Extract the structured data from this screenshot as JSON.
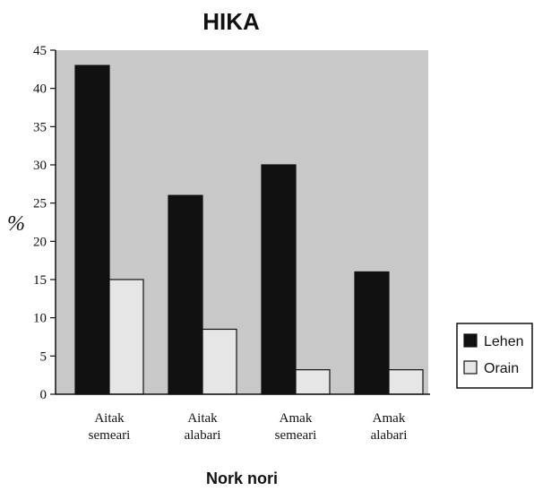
{
  "chart_data": {
    "type": "bar",
    "title": "HIKA",
    "xlabel": "Nork nori",
    "ylabel": "%",
    "categories": [
      [
        "Aitak",
        "semeari"
      ],
      [
        "Aitak",
        "alabari"
      ],
      [
        "Amak",
        "semeari"
      ],
      [
        "Amak",
        "alabari"
      ]
    ],
    "series": [
      {
        "name": "Lehen",
        "values": [
          43,
          26,
          30,
          16
        ],
        "color": "#111111"
      },
      {
        "name": "Orain",
        "values": [
          15,
          8.5,
          3.2,
          3.2
        ],
        "color": "#e6e6e6"
      }
    ],
    "ylim": [
      0,
      45
    ],
    "yticks": [
      0,
      5,
      10,
      15,
      20,
      25,
      30,
      35,
      40,
      45
    ],
    "grid": false,
    "legend_position": "bottom-right",
    "plot_background": "#c8c8c8"
  }
}
